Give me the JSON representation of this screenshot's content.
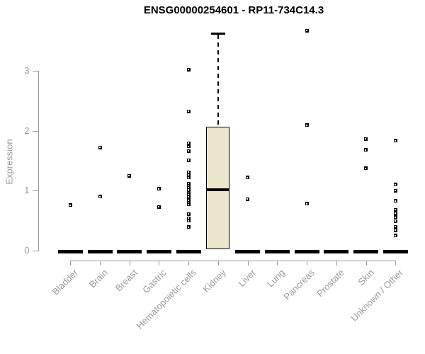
{
  "title": "ENSG00000254601 - RP11-734C14.3",
  "ylabel": "Expression",
  "chart_data": {
    "type": "boxplot",
    "title": "ENSG00000254601 - RP11-734C14.3",
    "xlabel": "",
    "ylabel": "Expression",
    "ylim": [
      0,
      3.8
    ],
    "yticks": [
      0,
      1,
      2,
      3
    ],
    "grid": false,
    "legend": "none",
    "box_fill_color": "#ECE7CC",
    "box_border_color": "#000000",
    "axis_color": "#999999",
    "label_color": "#999999",
    "categories": [
      "Bladder",
      "Brain",
      "Breast",
      "Gastric",
      "Hematopoietic cells",
      "Kidney",
      "Liver",
      "Lung",
      "Pancreas",
      "Prostate",
      "Skin",
      "Unknown / Other"
    ],
    "series": [
      {
        "category": "Bladder",
        "box": {
          "q1": 0,
          "median": 0,
          "q3": 0
        },
        "outliers": [
          0.76
        ]
      },
      {
        "category": "Brain",
        "box": {
          "q1": 0,
          "median": 0,
          "q3": 0
        },
        "outliers": [
          1.72,
          0.9
        ]
      },
      {
        "category": "Breast",
        "box": {
          "q1": 0,
          "median": 0,
          "q3": 0
        },
        "outliers": [
          1.25
        ]
      },
      {
        "category": "Gastric",
        "box": {
          "q1": 0,
          "median": 0,
          "q3": 0
        },
        "outliers": [
          1.03,
          0.73
        ]
      },
      {
        "category": "Hematopoietic cells",
        "box": {
          "q1": 0,
          "median": 0,
          "q3": 0
        },
        "outliers": [
          3.02,
          2.32,
          1.79,
          1.74,
          1.66,
          1.51,
          1.31,
          1.26,
          1.22,
          1.11,
          1.08,
          1.05,
          1.02,
          0.99,
          0.96,
          0.93,
          0.9,
          0.87,
          0.84,
          0.8,
          0.77,
          0.61,
          0.54,
          0.5,
          0.39
        ],
        "note": "dense stack 0.77-1.11"
      },
      {
        "category": "Kidney",
        "box": {
          "q1": 0.02,
          "median": 1.01,
          "q3": 2.07,
          "whisker_high": 3.62
        },
        "outliers": []
      },
      {
        "category": "Liver",
        "box": {
          "q1": 0,
          "median": 0,
          "q3": 0
        },
        "outliers": [
          1.22,
          0.86
        ]
      },
      {
        "category": "Lung",
        "box": {
          "q1": 0,
          "median": 0,
          "q3": 0
        },
        "outliers": []
      },
      {
        "category": "Pancreas",
        "box": {
          "q1": 0,
          "median": 0,
          "q3": 0
        },
        "outliers": [
          3.67,
          2.09,
          0.78
        ]
      },
      {
        "category": "Prostate",
        "box": {
          "q1": 0,
          "median": 0,
          "q3": 0
        },
        "outliers": []
      },
      {
        "category": "Skin",
        "box": {
          "q1": 0,
          "median": 0,
          "q3": 0
        },
        "outliers": [
          1.86,
          1.68,
          1.37
        ]
      },
      {
        "category": "Unknown / Other",
        "box": {
          "q1": 0,
          "median": 0,
          "q3": 0
        },
        "outliers": [
          1.83,
          1.1,
          1.0,
          0.83,
          0.68,
          0.62,
          0.56,
          0.49,
          0.4,
          0.34,
          0.25
        ]
      }
    ]
  }
}
